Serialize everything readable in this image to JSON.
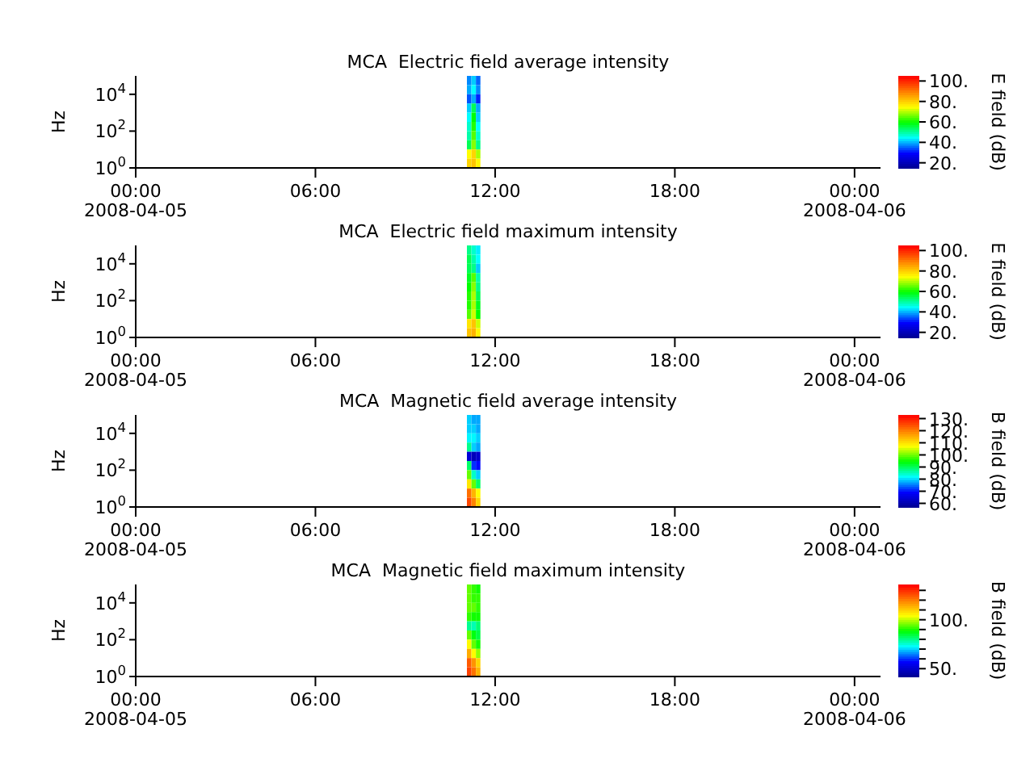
{
  "chart_data": [
    {
      "type": "heatmap",
      "title": "MCA  Electric field average intensity",
      "ylabel": "Hz",
      "clabel": "E field (dB)",
      "log": "y",
      "x": [
        "2008-04-05T11:08",
        "2008-04-05T11:17",
        "2008-04-05T11:26"
      ],
      "cells": [
        [
          38,
          42,
          36
        ],
        [
          40,
          45,
          38
        ],
        [
          35,
          40,
          32
        ],
        [
          42,
          55,
          40
        ],
        [
          45,
          60,
          42
        ],
        [
          48,
          62,
          45
        ],
        [
          50,
          65,
          48
        ],
        [
          55,
          68,
          52
        ],
        [
          75,
          80,
          70
        ],
        [
          80,
          82,
          76
        ]
      ],
      "colors": [
        "#00008f",
        "#0000ff",
        "#00ffff",
        "#00ff00",
        "#ffff00",
        "#ff8000",
        "#ff0000"
      ],
      "clim": [
        15,
        105
      ],
      "cticks": [
        {
          "value": 20,
          "label": "20."
        },
        {
          "value": 40,
          "label": "40."
        },
        {
          "value": 60,
          "label": "60."
        },
        {
          "value": 80,
          "label": "80."
        },
        {
          "value": 100,
          "label": "100."
        }
      ],
      "xlim": [
        "2008-04-05T00:00",
        "2008-04-06T00:52"
      ],
      "xticks": [
        {
          "value": "2008-04-05T00:00",
          "label": "00:00\n2008-04-05"
        },
        {
          "value": "2008-04-05T06:00",
          "label": "06:00"
        },
        {
          "value": "2008-04-05T12:00",
          "label": "12:00"
        },
        {
          "value": "2008-04-05T18:00",
          "label": "18:00"
        },
        {
          "value": "2008-04-06T00:00",
          "label": "00:00\n2008-04-06"
        }
      ],
      "ylim": [
        1,
        100000
      ],
      "yticks": [
        {
          "value": 1,
          "label": "10$^{0}$"
        },
        {
          "value": 100,
          "label": "10$^{2}$"
        },
        {
          "value": 10000,
          "label": "10$^{4}$"
        }
      ],
      "grid": false,
      "legend": false
    },
    {
      "type": "heatmap",
      "title": "MCA  Electric field maximum intensity",
      "ylabel": "Hz",
      "clabel": "E field (dB)",
      "log": "y",
      "x": [
        "2008-04-05T11:08",
        "2008-04-05T11:17",
        "2008-04-05T11:26"
      ],
      "cells": [
        [
          52,
          48,
          44
        ],
        [
          55,
          50,
          45
        ],
        [
          55,
          52,
          42
        ],
        [
          58,
          65,
          50
        ],
        [
          60,
          68,
          52
        ],
        [
          62,
          70,
          55
        ],
        [
          62,
          70,
          58
        ],
        [
          65,
          72,
          60
        ],
        [
          78,
          82,
          72
        ],
        [
          82,
          84,
          76
        ]
      ],
      "colors": [
        "#00008f",
        "#0000ff",
        "#00ffff",
        "#00ff00",
        "#ffff00",
        "#ff8000",
        "#ff0000"
      ],
      "clim": [
        15,
        105
      ],
      "cticks": [
        {
          "value": 20,
          "label": "20."
        },
        {
          "value": 40,
          "label": "40."
        },
        {
          "value": 60,
          "label": "60."
        },
        {
          "value": 80,
          "label": "80."
        },
        {
          "value": 100,
          "label": "100."
        }
      ],
      "xlim": [
        "2008-04-05T00:00",
        "2008-04-06T00:52"
      ],
      "xticks": [
        {
          "value": "2008-04-05T00:00",
          "label": "00:00\n2008-04-05"
        },
        {
          "value": "2008-04-05T06:00",
          "label": "06:00"
        },
        {
          "value": "2008-04-05T12:00",
          "label": "12:00"
        },
        {
          "value": "2008-04-05T18:00",
          "label": "18:00"
        },
        {
          "value": "2008-04-06T00:00",
          "label": "00:00\n2008-04-06"
        }
      ],
      "ylim": [
        1,
        100000
      ],
      "yticks": [
        {
          "value": 1,
          "label": "10$^{0}$"
        },
        {
          "value": 100,
          "label": "10$^{2}$"
        },
        {
          "value": 10000,
          "label": "10$^{4}$"
        }
      ],
      "grid": false,
      "legend": false
    },
    {
      "type": "heatmap",
      "title": "MCA  Magnetic field average intensity",
      "ylabel": "Hz",
      "clabel": "B field (dB)",
      "log": "y",
      "x": [
        "2008-04-05T11:08",
        "2008-04-05T11:17",
        "2008-04-05T11:26"
      ],
      "cells": [
        [
          80,
          78,
          78
        ],
        [
          80,
          80,
          78
        ],
        [
          82,
          82,
          80
        ],
        [
          88,
          80,
          78
        ],
        [
          65,
          62,
          64
        ],
        [
          90,
          72,
          70
        ],
        [
          100,
          85,
          80
        ],
        [
          110,
          100,
          90
        ],
        [
          122,
          115,
          108
        ],
        [
          126,
          120,
          112
        ]
      ],
      "colors": [
        "#00008f",
        "#0000ff",
        "#00ffff",
        "#00ff00",
        "#ffff00",
        "#ff8000",
        "#ff0000"
      ],
      "clim": [
        57,
        133
      ],
      "cticks": [
        {
          "value": 60,
          "label": "60."
        },
        {
          "value": 70,
          "label": "70."
        },
        {
          "value": 80,
          "label": "80."
        },
        {
          "value": 90,
          "label": "90."
        },
        {
          "value": 100,
          "label": "100."
        },
        {
          "value": 110,
          "label": "110."
        },
        {
          "value": 120,
          "label": "120."
        },
        {
          "value": 130,
          "label": "130."
        }
      ],
      "xlim": [
        "2008-04-05T00:00",
        "2008-04-06T00:52"
      ],
      "xticks": [
        {
          "value": "2008-04-05T00:00",
          "label": "00:00\n2008-04-05"
        },
        {
          "value": "2008-04-05T06:00",
          "label": "06:00"
        },
        {
          "value": "2008-04-05T12:00",
          "label": "12:00"
        },
        {
          "value": "2008-04-05T18:00",
          "label": "18:00"
        },
        {
          "value": "2008-04-06T00:00",
          "label": "00:00\n2008-04-06"
        }
      ],
      "ylim": [
        1,
        100000
      ],
      "yticks": [
        {
          "value": 1,
          "label": "10$^{0}$"
        },
        {
          "value": 100,
          "label": "10$^{2}$"
        },
        {
          "value": 10000,
          "label": "10$^{4}$"
        }
      ],
      "grid": false,
      "legend": false
    },
    {
      "type": "heatmap",
      "title": "MCA  Magnetic field maximum intensity",
      "ylabel": "Hz",
      "clabel": "B field (dB)",
      "log": "y",
      "x": [
        "2008-04-05T11:08",
        "2008-04-05T11:17",
        "2008-04-05T11:26"
      ],
      "cells": [
        [
          95,
          92,
          90
        ],
        [
          95,
          92,
          92
        ],
        [
          95,
          95,
          92
        ],
        [
          92,
          90,
          90
        ],
        [
          80,
          78,
          82
        ],
        [
          95,
          88,
          85
        ],
        [
          105,
          95,
          90
        ],
        [
          115,
          105,
          98
        ],
        [
          125,
          118,
          110
        ],
        [
          128,
          122,
          114
        ]
      ],
      "colors": [
        "#00008f",
        "#0000ff",
        "#00ffff",
        "#00ff00",
        "#ffff00",
        "#ff8000",
        "#ff0000"
      ],
      "clim": [
        42,
        136
      ],
      "cticks": [
        {
          "value": 50,
          "label": "50."
        },
        {
          "value": 60,
          "label": null
        },
        {
          "value": 70,
          "label": null
        },
        {
          "value": 80,
          "label": null
        },
        {
          "value": 90,
          "label": null
        },
        {
          "value": 100,
          "label": "100."
        },
        {
          "value": 110,
          "label": null
        },
        {
          "value": 120,
          "label": null
        },
        {
          "value": 130,
          "label": null
        }
      ],
      "xlim": [
        "2008-04-05T00:00",
        "2008-04-06T00:52"
      ],
      "xticks": [
        {
          "value": "2008-04-05T00:00",
          "label": "00:00\n2008-04-05"
        },
        {
          "value": "2008-04-05T06:00",
          "label": "06:00"
        },
        {
          "value": "2008-04-05T12:00",
          "label": "12:00"
        },
        {
          "value": "2008-04-05T18:00",
          "label": "18:00"
        },
        {
          "value": "2008-04-06T00:00",
          "label": "00:00\n2008-04-06"
        }
      ],
      "ylim": [
        1,
        100000
      ],
      "yticks": [
        {
          "value": 1,
          "label": "10$^{0}$"
        },
        {
          "value": 100,
          "label": "10$^{2}$"
        },
        {
          "value": 10000,
          "label": "10$^{4}$"
        }
      ],
      "grid": false,
      "legend": false
    }
  ]
}
